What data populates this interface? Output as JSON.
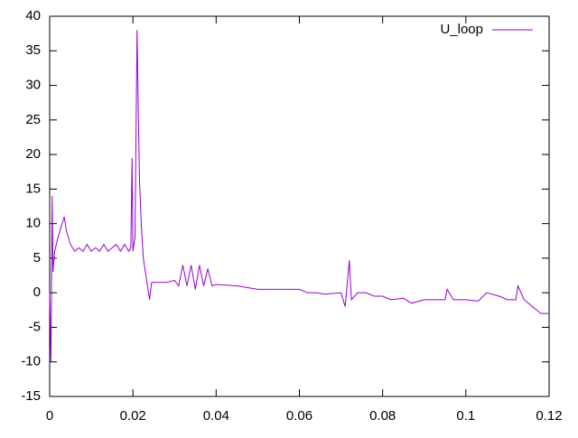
{
  "chart_data": {
    "type": "line",
    "x": [
      0,
      0.0003,
      0.0006,
      0.0008,
      0.0012,
      0.002,
      0.003,
      0.0035,
      0.004,
      0.005,
      0.006,
      0.007,
      0.008,
      0.009,
      0.01,
      0.011,
      0.012,
      0.013,
      0.014,
      0.015,
      0.016,
      0.017,
      0.018,
      0.019,
      0.0195,
      0.0198,
      0.02,
      0.0205,
      0.021,
      0.0213,
      0.0216,
      0.022,
      0.0225,
      0.023,
      0.0235,
      0.024,
      0.0245,
      0.026,
      0.028,
      0.03,
      0.031,
      0.032,
      0.033,
      0.034,
      0.035,
      0.036,
      0.037,
      0.038,
      0.039,
      0.04,
      0.045,
      0.05,
      0.055,
      0.06,
      0.062,
      0.064,
      0.066,
      0.068,
      0.07,
      0.071,
      0.072,
      0.0725,
      0.074,
      0.076,
      0.078,
      0.08,
      0.082,
      0.085,
      0.087,
      0.09,
      0.095,
      0.0955,
      0.097,
      0.1,
      0.103,
      0.105,
      0.108,
      0.11,
      0.112,
      0.1125,
      0.114,
      0.116,
      0.118,
      0.12
    ],
    "series": [
      {
        "name": "U_loop",
        "color": "#9400d3",
        "values": [
          0,
          -10,
          14,
          3,
          6,
          8,
          10,
          11,
          9,
          7,
          6,
          6.5,
          6,
          7,
          6,
          6.5,
          6,
          7,
          6,
          6.5,
          7,
          6,
          7,
          6,
          6.5,
          19.5,
          6,
          8,
          38,
          26,
          16,
          10,
          5,
          3,
          1,
          -1,
          1.5,
          1.5,
          1.5,
          1.8,
          1,
          4,
          1,
          4,
          0.5,
          4,
          1,
          3.5,
          1,
          1.2,
          1,
          0.5,
          0.5,
          0.5,
          0,
          0,
          -0.2,
          -0.1,
          0,
          -2,
          4.7,
          -1,
          0,
          0,
          -0.5,
          -0.5,
          -1,
          -0.8,
          -1.5,
          -1,
          -1,
          0.5,
          -1,
          -1,
          -1.2,
          0,
          -0.5,
          -1,
          -1,
          1,
          -1,
          -2,
          -3,
          -3
        ]
      }
    ],
    "xlim": [
      0,
      0.12
    ],
    "xticks": [
      0,
      0.02,
      0.04,
      0.06,
      0.08,
      0.1,
      0.12
    ],
    "ylim": [
      -15,
      40
    ],
    "yticks": [
      -15,
      -10,
      -5,
      0,
      5,
      10,
      15,
      20,
      25,
      30,
      35,
      40
    ],
    "legend": "top-right"
  }
}
